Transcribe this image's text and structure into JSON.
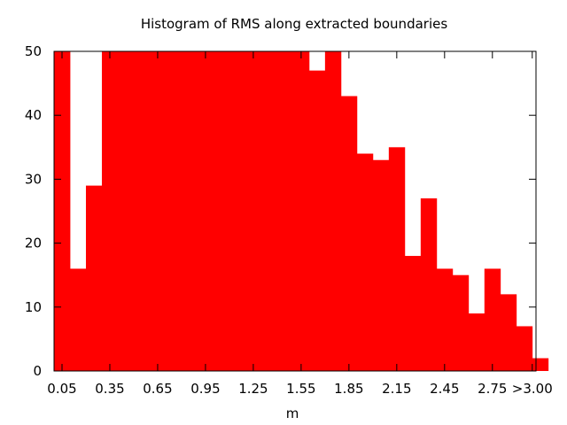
{
  "chart_data": {
    "type": "bar",
    "title": "Histogram of RMS along extracted boundaries",
    "xlabel": "m",
    "ylabel": "",
    "ylim": [
      0,
      50
    ],
    "clipped_top": true,
    "bar_color": "#ff0000",
    "grid": false,
    "x_tick_labels": [
      "0.05",
      "0.35",
      "0.65",
      "0.95",
      "1.25",
      "1.55",
      "1.85",
      "2.15",
      "2.45",
      "2.75",
      ">3.00"
    ],
    "y_tick_labels": [
      "0",
      "10",
      "20",
      "30",
      "40",
      "50"
    ],
    "bin_width": 0.1,
    "categories": [
      "0.05",
      "0.15",
      "0.25",
      "0.35",
      "0.45",
      "0.55",
      "0.65",
      "0.75",
      "0.85",
      "0.95",
      "1.05",
      "1.15",
      "1.25",
      "1.35",
      "1.45",
      "1.55",
      "1.65",
      "1.75",
      "1.85",
      "1.95",
      "2.05",
      "2.15",
      "2.25",
      "2.35",
      "2.45",
      "2.55",
      "2.65",
      "2.75",
      "2.85",
      "2.95",
      ">3.00"
    ],
    "values": [
      50,
      16,
      29,
      50,
      50,
      50,
      50,
      50,
      50,
      50,
      50,
      50,
      50,
      50,
      50,
      50,
      47,
      50,
      43,
      34,
      33,
      35,
      18,
      27,
      16,
      15,
      9,
      16,
      12,
      7,
      2
    ]
  }
}
